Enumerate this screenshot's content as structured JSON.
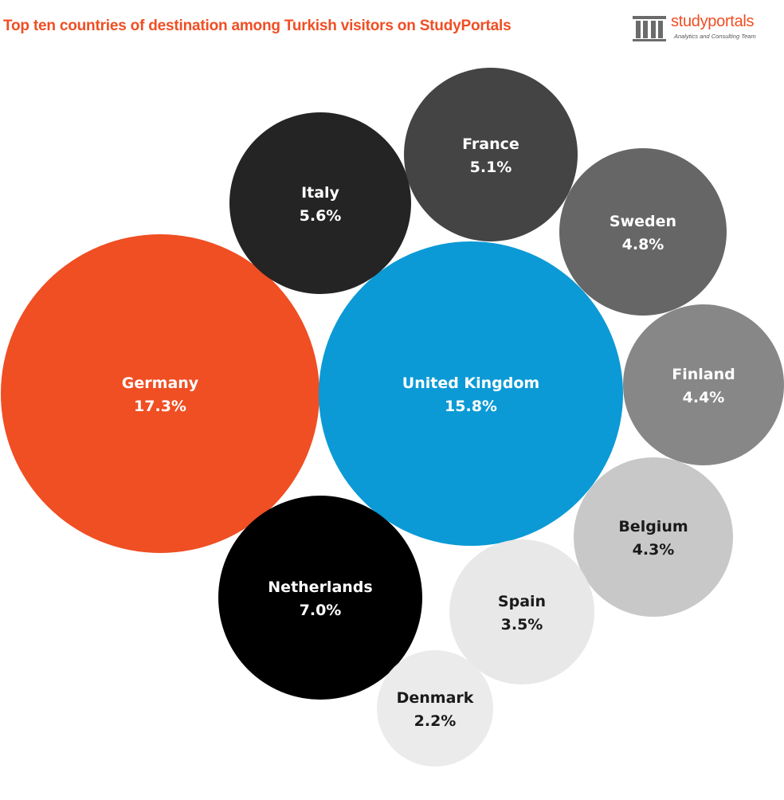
{
  "header": {
    "title": "Top ten countries of destination among Turkish visitors on StudyPortals"
  },
  "logo": {
    "name": "studyportals",
    "tagline": "Analytics and Consulting Team",
    "icon": "building-columns-icon",
    "color": "#f04e23"
  },
  "chart_data": {
    "type": "bubble",
    "title": "Top ten countries of destination among Turkish visitors on StudyPortals",
    "unit": "%",
    "series": [
      {
        "label": "Germany",
        "value": 17.3,
        "display": "17.3%",
        "color": "#f04e23",
        "text_color": "#ffffff"
      },
      {
        "label": "United Kingdom",
        "value": 15.8,
        "display": "15.8%",
        "color": "#0b9ad6",
        "text_color": "#ffffff"
      },
      {
        "label": "Netherlands",
        "value": 7.0,
        "display": "7.0%",
        "color": "#000000",
        "text_color": "#ffffff"
      },
      {
        "label": "Italy",
        "value": 5.6,
        "display": "5.6%",
        "color": "#242424",
        "text_color": "#ffffff"
      },
      {
        "label": "France",
        "value": 5.1,
        "display": "5.1%",
        "color": "#444444",
        "text_color": "#ffffff"
      },
      {
        "label": "Sweden",
        "value": 4.8,
        "display": "4.8%",
        "color": "#666666",
        "text_color": "#ffffff"
      },
      {
        "label": "Finland",
        "value": 4.4,
        "display": "4.4%",
        "color": "#878787",
        "text_color": "#ffffff"
      },
      {
        "label": "Belgium",
        "value": 4.3,
        "display": "4.3%",
        "color": "#c8c8c8",
        "text_color": "#1a1a1a"
      },
      {
        "label": "Spain",
        "value": 3.5,
        "display": "3.5%",
        "color": "#e8e8e8",
        "text_color": "#1a1a1a"
      },
      {
        "label": "Denmark",
        "value": 2.2,
        "display": "2.2%",
        "color": "#ebebeb",
        "text_color": "#1a1a1a"
      }
    ]
  }
}
